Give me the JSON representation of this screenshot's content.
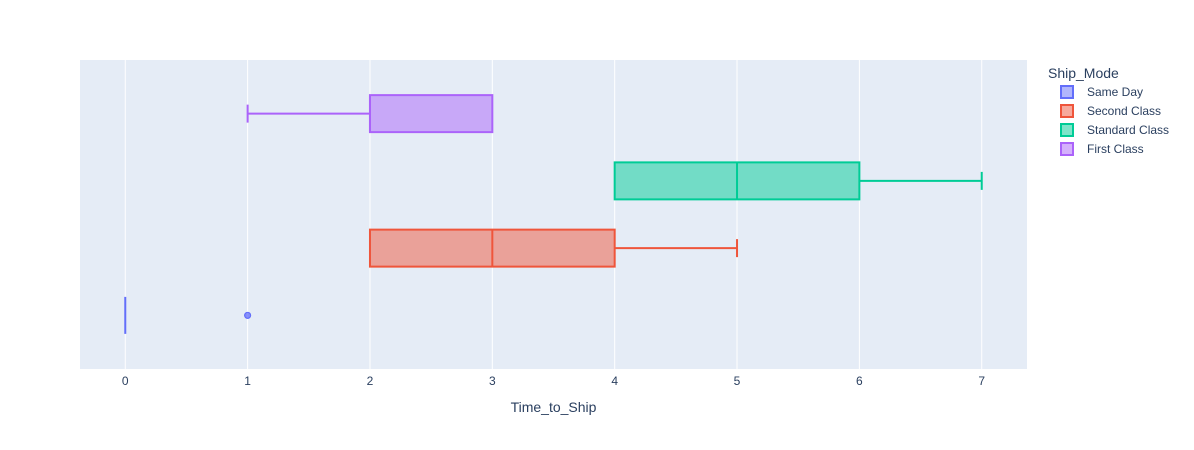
{
  "chart_data": {
    "type": "box",
    "orientation": "horizontal",
    "xlabel": "Time_to_Ship",
    "xlim": [
      -0.37,
      7.37
    ],
    "xticks": [
      0,
      1,
      2,
      3,
      4,
      5,
      6,
      7
    ],
    "grid": true,
    "legend_title": "Ship_Mode",
    "legend_position": "right",
    "background": "#e5ecf6",
    "series": [
      {
        "name": "Same Day",
        "color": "#636efa",
        "fill": "rgba(99,110,250,0.5)",
        "min": 0,
        "q1": 0,
        "median": 0,
        "q3": 0,
        "max": 0,
        "outliers": [
          1,
          1
        ]
      },
      {
        "name": "Second Class",
        "color": "#ef553b",
        "fill": "rgba(239,85,59,0.5)",
        "min": 2,
        "q1": 2,
        "median": 3,
        "q3": 4,
        "max": 5,
        "outliers": []
      },
      {
        "name": "Standard Class",
        "color": "#00cc96",
        "fill": "rgba(0,204,150,0.5)",
        "min": 4,
        "q1": 4,
        "median": 5,
        "q3": 6,
        "max": 7,
        "outliers": []
      },
      {
        "name": "First Class",
        "color": "#ab63fa",
        "fill": "rgba(171,99,250,0.5)",
        "min": 1,
        "q1": 2,
        "median": 2,
        "q3": 3,
        "max": 3,
        "outliers": []
      }
    ]
  }
}
